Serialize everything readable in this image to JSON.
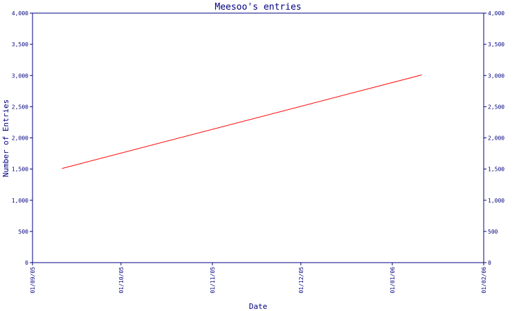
{
  "chart_data": {
    "type": "line",
    "title": "Meesoo's entries",
    "xlabel": "Date",
    "ylabel": "Number of Entries",
    "x_ticks": [
      "01/09/05",
      "01/10/05",
      "01/11/05",
      "01/12/05",
      "01/01/06",
      "01/02/06"
    ],
    "y_ticks": [
      "0",
      "500",
      "1,000",
      "1,500",
      "2,000",
      "2,500",
      "3,000",
      "3,500",
      "4,000"
    ],
    "ylim": [
      0,
      4000
    ],
    "xlim": [
      "2005-09-01",
      "2006-02-01"
    ],
    "grid": false,
    "series": [
      {
        "x": [
          "2005-09-11",
          "2006-01-11"
        ],
        "y": [
          1510,
          3010
        ]
      }
    ],
    "colors": {
      "axis": "#000080",
      "line": "#ff0000",
      "text": "#000080"
    }
  }
}
